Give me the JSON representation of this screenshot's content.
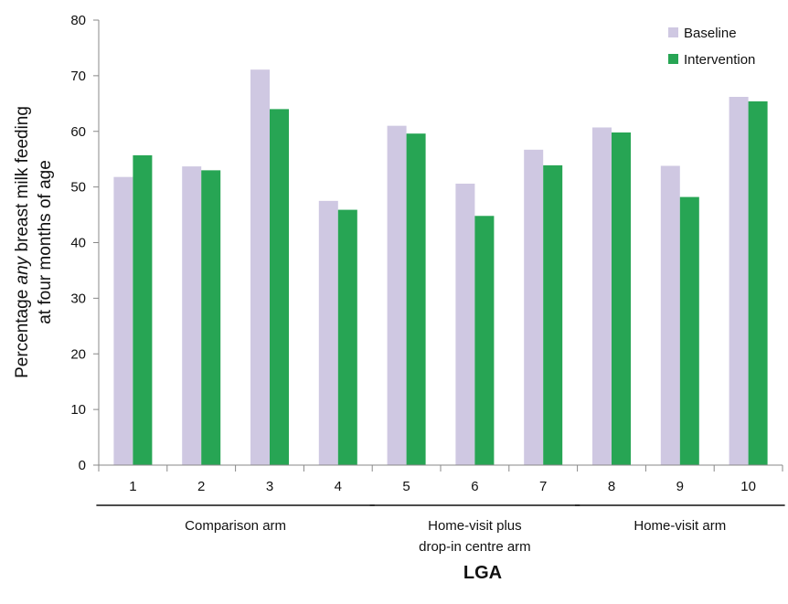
{
  "chart_data": {
    "type": "bar",
    "categories": [
      "1",
      "2",
      "3",
      "4",
      "5",
      "6",
      "7",
      "8",
      "9",
      "10"
    ],
    "series": [
      {
        "name": "Baseline",
        "color": "#cfc8e2",
        "values": [
          51.8,
          53.7,
          71.1,
          47.5,
          61.0,
          50.6,
          56.7,
          60.7,
          53.8,
          66.2
        ]
      },
      {
        "name": "Intervention",
        "color": "#27a554",
        "values": [
          55.7,
          53.0,
          64.0,
          45.9,
          59.6,
          44.8,
          53.9,
          59.8,
          48.2,
          65.4
        ]
      }
    ],
    "ylabel_parts": [
      "Percentage ",
      "any",
      " breast milk feeding"
    ],
    "ylabel_line2": "at four months of  age",
    "xlabel": "LGA",
    "ylim": [
      0,
      80
    ],
    "yticks": [
      0,
      10,
      20,
      30,
      40,
      50,
      60,
      70,
      80
    ],
    "legend_position": "top-right",
    "grid": false,
    "groups": [
      {
        "label_lines": [
          "Comparison arm"
        ],
        "categories": [
          "1",
          "2",
          "3",
          "4"
        ]
      },
      {
        "label_lines": [
          "Home-visit plus",
          "drop-in centre arm"
        ],
        "categories": [
          "5",
          "6",
          "7"
        ]
      },
      {
        "label_lines": [
          "Home-visit arm"
        ],
        "categories": [
          "8",
          "9",
          "10"
        ]
      }
    ]
  }
}
